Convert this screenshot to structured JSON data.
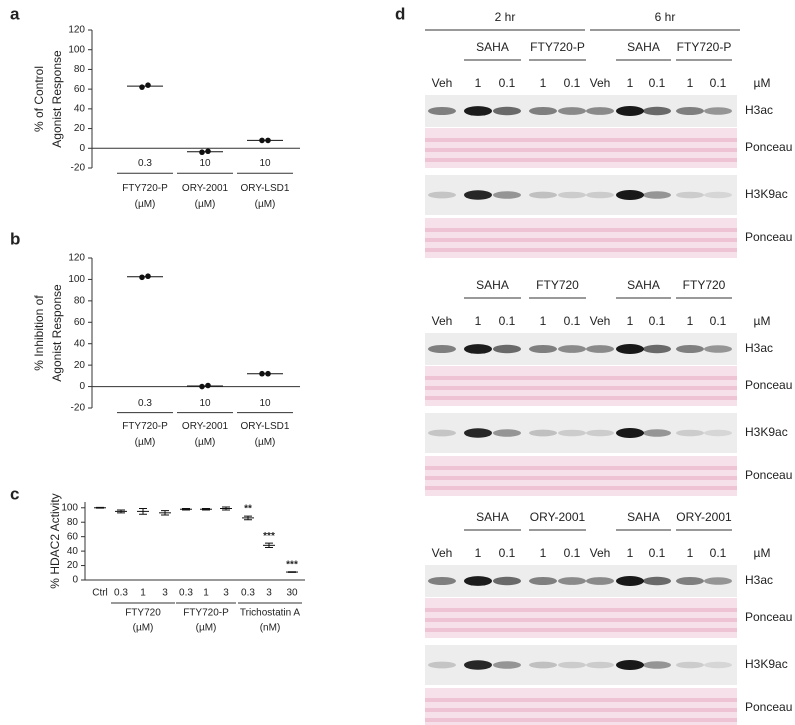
{
  "chart_data": [
    {
      "type": "dot",
      "label": "a",
      "ylabel": [
        "% of Control",
        "Agonist Response"
      ],
      "categories": [
        "0.3",
        "10",
        "10"
      ],
      "groups": [
        {
          "name": "FTY720-P",
          "unit": "(µM)"
        },
        {
          "name": "ORY-2001",
          "unit": "(µM)"
        },
        {
          "name": "ORY-LSD1",
          "unit": "(µM)"
        }
      ],
      "values": [
        63,
        -3.5,
        8
      ],
      "points": [
        [
          62,
          64
        ],
        [
          -4,
          -3
        ],
        [
          8,
          8
        ]
      ],
      "color": "#111111",
      "ylim": [
        -20,
        120
      ],
      "yticks": [
        -20,
        0,
        20,
        40,
        60,
        80,
        100,
        120
      ]
    },
    {
      "type": "dot",
      "label": "b",
      "ylabel": [
        "% Inhibition of",
        "Agonist Response"
      ],
      "categories": [
        "0.3",
        "10",
        "10"
      ],
      "groups": [
        {
          "name": "FTY720-P",
          "unit": "(µM)"
        },
        {
          "name": "ORY-2001",
          "unit": "(µM)"
        },
        {
          "name": "ORY-LSD1",
          "unit": "(µM)"
        }
      ],
      "values": [
        102.5,
        0.5,
        12
      ],
      "points": [
        [
          102,
          103
        ],
        [
          0,
          1
        ],
        [
          12,
          12
        ]
      ],
      "color": "#111111",
      "ylim": [
        -20,
        120
      ],
      "yticks": [
        -20,
        0,
        20,
        40,
        60,
        80,
        100,
        120
      ]
    },
    {
      "type": "errorbar",
      "label": "c",
      "ylabel": [
        "% HDAC2 Activity"
      ],
      "categories": [
        "Ctrl",
        "0.3",
        "1",
        "3",
        "0.3",
        "1",
        "3",
        "0.3",
        "3",
        "30"
      ],
      "groups": [
        {
          "name": "FTY720",
          "unit": "(µM)"
        },
        {
          "name": "FTY720-P",
          "unit": "(µM)"
        },
        {
          "name": "Trichostatin A",
          "unit": "(nM)"
        }
      ],
      "values": [
        100,
        95,
        95,
        93,
        98,
        98,
        99,
        86,
        48,
        11
      ],
      "errors": [
        0.5,
        2,
        4,
        3,
        1,
        1,
        2,
        2.5,
        3,
        0.5
      ],
      "annotations": [
        null,
        null,
        null,
        null,
        null,
        null,
        null,
        "**",
        "***",
        "***"
      ],
      "color": "#111111",
      "ylim": [
        0,
        108
      ],
      "yticks": [
        0,
        20,
        40,
        60,
        80,
        100
      ]
    }
  ],
  "blot": {
    "label": "d",
    "times": [
      "2 hr",
      "6 hr"
    ],
    "unit": "µM",
    "blocks": [
      {
        "treatments": [
          "SAHA",
          "FTY720-P",
          "SAHA",
          "FTY720-P"
        ],
        "lanes": [
          "Veh",
          "1",
          "0.1",
          "1",
          "0.1",
          "Veh",
          "1",
          "0.1",
          "1",
          "0.1"
        ],
        "rows": [
          "H3ac",
          "Ponceau",
          "H3K9ac",
          "Ponceau"
        ]
      },
      {
        "treatments": [
          "SAHA",
          "FTY720",
          "SAHA",
          "FTY720"
        ],
        "lanes": [
          "Veh",
          "1",
          "0.1",
          "1",
          "0.1",
          "Veh",
          "1",
          "0.1",
          "1",
          "0.1"
        ],
        "rows": [
          "H3ac",
          "Ponceau",
          "H3K9ac",
          "Ponceau"
        ]
      },
      {
        "treatments": [
          "SAHA",
          "ORY-2001",
          "SAHA",
          "ORY-2001"
        ],
        "lanes": [
          "Veh",
          "1",
          "0.1",
          "1",
          "0.1",
          "Veh",
          "1",
          "0.1",
          "1",
          "0.1"
        ],
        "rows": [
          "H3ac",
          "Ponceau",
          "H3K9ac",
          "Ponceau"
        ]
      }
    ]
  }
}
